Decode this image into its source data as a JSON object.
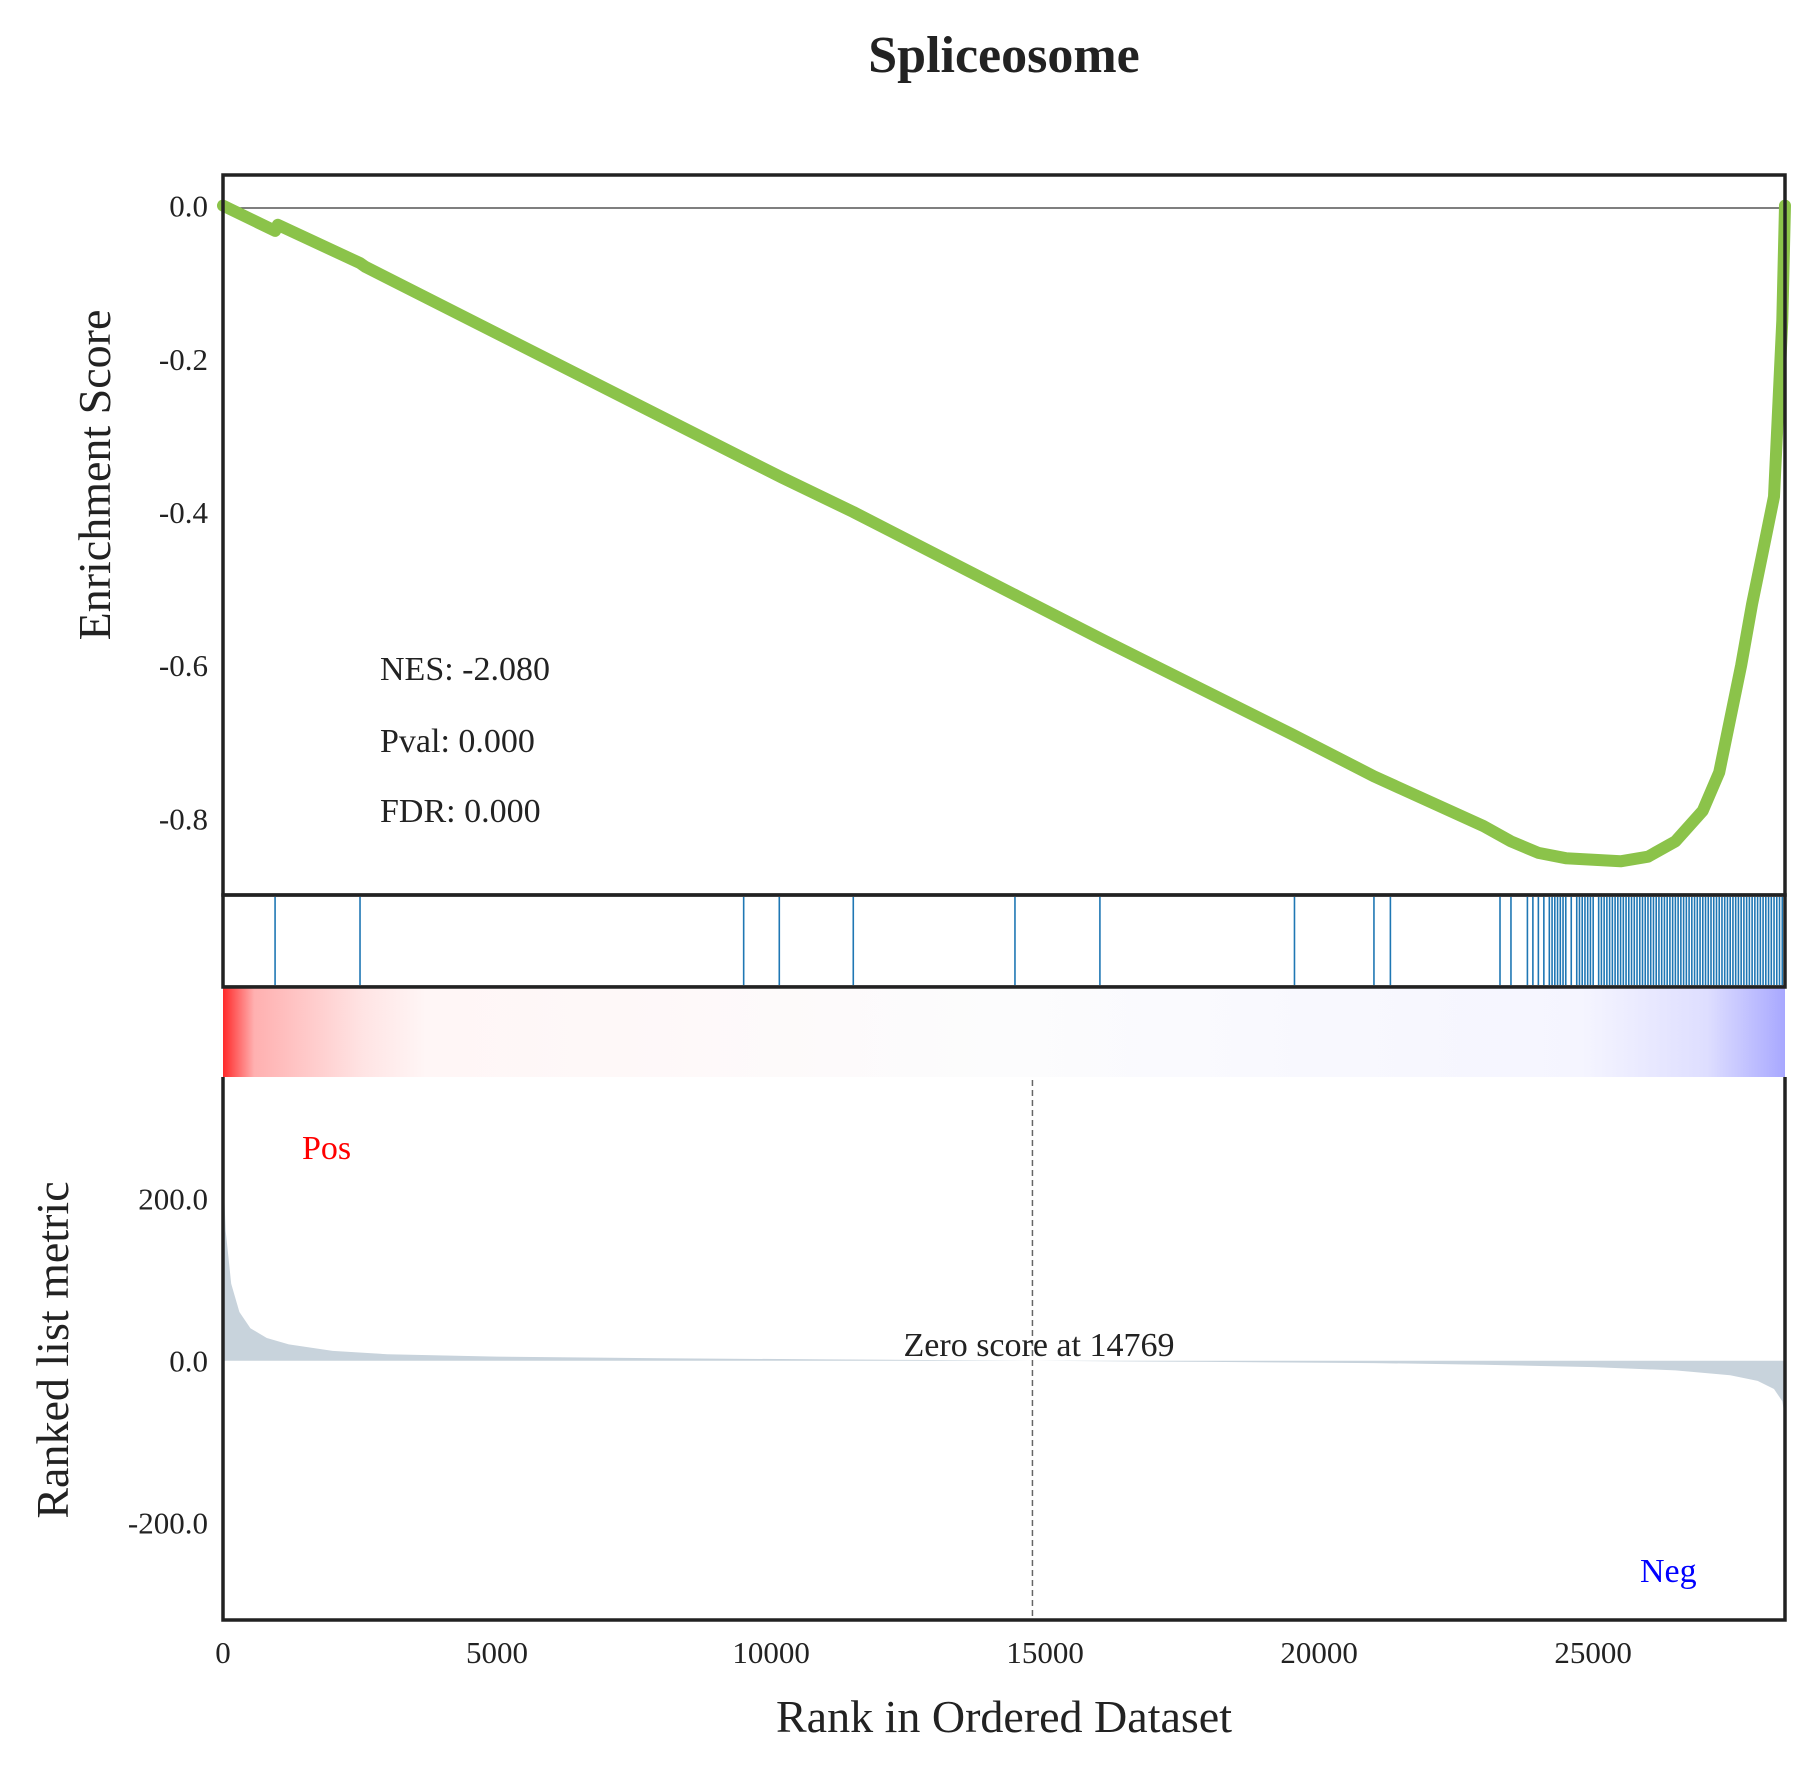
{
  "chart_data": {
    "type": "line",
    "title": "Spliceosome",
    "xlabel": "Rank in Ordered Dataset",
    "xlim": [
      0,
      28500
    ],
    "x_ticks": [
      "0",
      "5000",
      "10000",
      "15000",
      "20000",
      "25000"
    ],
    "x_tick_values": [
      0,
      5000,
      10000,
      15000,
      20000,
      25000
    ],
    "colors": {
      "es_line": "#8bc34a",
      "hits": "#1f77b4",
      "pos_bar": "#ff0000",
      "neg_bar": "#0000ff",
      "metric_fill": "#c8d3dc",
      "frame": "#222222"
    },
    "enrichment": {
      "ylabel": "Enrichment Score",
      "ylim": [
        -0.9,
        0.04
      ],
      "y_ticks": [
        "0.0",
        "-0.2",
        "-0.4",
        "-0.6",
        "-0.8"
      ],
      "y_tick_values": [
        0.0,
        -0.2,
        -0.4,
        -0.6,
        -0.8
      ],
      "x": [
        0,
        950,
        1000,
        2500,
        2600,
        9500,
        10200,
        11500,
        14500,
        16000,
        19500,
        21000,
        23000,
        23500,
        24000,
        24500,
        25000,
        25500,
        26000,
        26500,
        27000,
        27300,
        27500,
        27700,
        27900,
        28100,
        28300,
        28450,
        28500
      ],
      "y": [
        0.0,
        -0.033,
        -0.025,
        -0.075,
        -0.08,
        -0.33,
        -0.355,
        -0.4,
        -0.51,
        -0.565,
        -0.69,
        -0.745,
        -0.81,
        -0.83,
        -0.845,
        -0.852,
        -0.854,
        -0.856,
        -0.85,
        -0.83,
        -0.79,
        -0.74,
        -0.67,
        -0.6,
        -0.52,
        -0.45,
        -0.38,
        -0.15,
        0.0
      ],
      "nes_label": "NES: -2.080",
      "pval_label": "Pval: 0.000",
      "fdr_label": "FDR: 0.000"
    },
    "hits": [
      950,
      2500,
      9500,
      10150,
      11500,
      14450,
      16000,
      19550,
      21000,
      21300,
      23300,
      23500,
      23800,
      23900,
      24000,
      24100,
      24200,
      24250,
      24300,
      24350,
      24400,
      24450,
      24500,
      24600,
      24700,
      24750,
      24800,
      24850,
      24900,
      24950,
      25000,
      25100,
      25150,
      25200,
      25250,
      25300,
      25350,
      25400,
      25450,
      25500,
      25550,
      25600,
      25650,
      25700,
      25750,
      25800,
      25850,
      25900,
      25950,
      26000,
      26050,
      26100,
      26150,
      26200,
      26250,
      26300,
      26350,
      26400,
      26450,
      26500,
      26550,
      26600,
      26650,
      26700,
      26750,
      26800,
      26850,
      26900,
      26950,
      27000,
      27050,
      27100,
      27150,
      27200,
      27250,
      27300,
      27350,
      27400,
      27450,
      27500,
      27550,
      27600,
      27650,
      27700,
      27750,
      27800,
      27850,
      27900,
      27950,
      28000,
      28050,
      28100,
      28150,
      28200,
      28250,
      28300,
      28350,
      28400,
      28450
    ],
    "metric": {
      "ylabel": "Ranked list metric",
      "ylim": [
        -320,
        350
      ],
      "y_ticks": [
        "200.0",
        "0.0",
        "-200.0"
      ],
      "y_tick_values": [
        200,
        0,
        -200
      ],
      "x": [
        0,
        50,
        150,
        300,
        500,
        800,
        1200,
        2000,
        3000,
        5000,
        8000,
        11000,
        14769,
        18000,
        21000,
        23000,
        25000,
        26500,
        27500,
        28000,
        28300,
        28450,
        28500
      ],
      "y": [
        240,
        160,
        95,
        60,
        40,
        28,
        20,
        12,
        8,
        5,
        3,
        1.5,
        0,
        -1.5,
        -3,
        -5,
        -8,
        -12,
        -18,
        -25,
        -35,
        -50,
        -70
      ],
      "zero_label": "Zero score at 14769",
      "zero_rank": 14769,
      "pos_label": "Pos",
      "neg_label": "Neg"
    }
  }
}
